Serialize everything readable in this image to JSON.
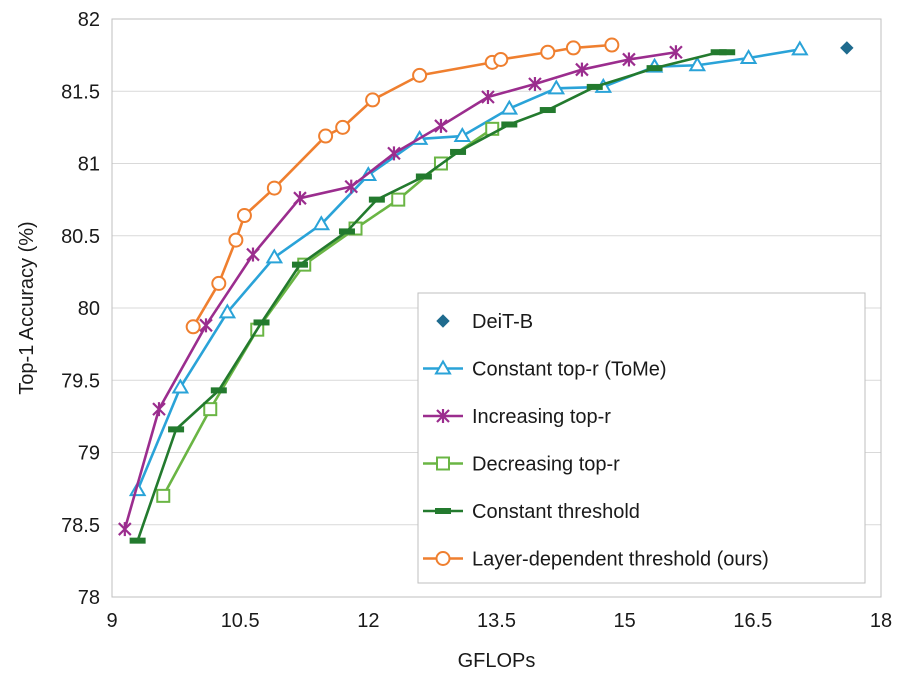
{
  "chart_data": {
    "type": "line",
    "xlabel": "GFLOPs",
    "ylabel": "Top-1 Accuracy (%)",
    "xlim": [
      9,
      18
    ],
    "ylim": [
      78,
      82
    ],
    "xticks": [
      9,
      10.5,
      12,
      13.5,
      15,
      16.5,
      18
    ],
    "yticks": [
      78,
      78.5,
      79,
      79.5,
      80,
      80.5,
      81,
      81.5,
      82
    ],
    "xtick_labels": [
      "9",
      "10.5",
      "12",
      "13.5",
      "15",
      "16.5",
      "18"
    ],
    "ytick_labels": [
      "78",
      "78.5",
      "79",
      "79.5",
      "80",
      "80.5",
      "81",
      "81.5",
      "82"
    ],
    "grid": "horizontal",
    "legend_position": "lower-right",
    "series": [
      {
        "name": "DeiT-B",
        "color": "#1f6b8e",
        "marker": "diamond",
        "line": false,
        "x": [
          17.6
        ],
        "y": [
          81.8
        ]
      },
      {
        "name": "Constant top-r (ToMe)",
        "color": "#2aa3d8",
        "marker": "triangle",
        "line": true,
        "x": [
          9.3,
          9.8,
          10.35,
          10.9,
          11.45,
          12.0,
          12.6,
          13.1,
          13.65,
          14.2,
          14.75,
          15.35,
          15.85,
          16.45,
          17.05
        ],
        "y": [
          78.74,
          79.45,
          79.97,
          80.35,
          80.58,
          80.92,
          81.17,
          81.19,
          81.38,
          81.52,
          81.53,
          81.67,
          81.68,
          81.73,
          81.79
        ]
      },
      {
        "name": "Increasing top-r",
        "color": "#9b2d8e",
        "marker": "x",
        "line": true,
        "x": [
          9.15,
          9.55,
          10.1,
          10.65,
          11.2,
          11.8,
          12.3,
          12.85,
          13.4,
          13.95,
          14.5,
          15.05,
          15.6
        ],
        "y": [
          78.47,
          79.3,
          79.88,
          80.37,
          80.76,
          80.84,
          81.07,
          81.26,
          81.46,
          81.55,
          81.65,
          81.72,
          81.77
        ]
      },
      {
        "name": "Decreasing top-r",
        "color": "#6ab544",
        "marker": "square",
        "line": true,
        "x": [
          9.6,
          10.15,
          10.7,
          11.25,
          11.85,
          12.35,
          12.85,
          13.45
        ],
        "y": [
          78.7,
          79.3,
          79.85,
          80.3,
          80.55,
          80.75,
          81.0,
          81.24
        ]
      },
      {
        "name": "Constant threshold",
        "color": "#237a2e",
        "marker": "dash",
        "line": true,
        "x": [
          9.3,
          9.75,
          10.25,
          10.75,
          11.2,
          11.75,
          12.1,
          12.65,
          13.05,
          13.65,
          14.1,
          14.65,
          15.35,
          16.1,
          16.2
        ],
        "y": [
          78.39,
          79.16,
          79.43,
          79.9,
          80.3,
          80.53,
          80.75,
          80.91,
          81.08,
          81.27,
          81.37,
          81.53,
          81.66,
          81.77,
          81.77
        ]
      },
      {
        "name": "Layer-dependent threshold (ours)",
        "color": "#ef7f2f",
        "marker": "circle",
        "line": true,
        "x": [
          9.95,
          10.25,
          10.45,
          10.55,
          10.9,
          11.5,
          11.7,
          12.05,
          12.6,
          13.45,
          13.55,
          14.1,
          14.4,
          14.85
        ],
        "y": [
          79.87,
          80.17,
          80.47,
          80.64,
          80.83,
          81.19,
          81.25,
          81.44,
          81.61,
          81.7,
          81.72,
          81.77,
          81.8,
          81.82
        ]
      }
    ]
  }
}
